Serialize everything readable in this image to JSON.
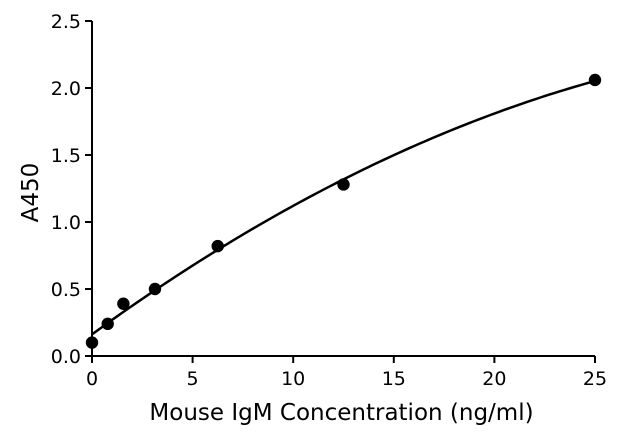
{
  "chart_data": {
    "type": "scatter",
    "title": "",
    "xlabel": "Mouse IgM Concentration (ng/ml)",
    "ylabel": "A450",
    "xlim": [
      0,
      25
    ],
    "ylim": [
      0,
      2.5
    ],
    "x_ticks": [
      "0",
      "5",
      "10",
      "15",
      "20",
      "25"
    ],
    "y_ticks": [
      "0.0",
      "0.5",
      "1.0",
      "1.5",
      "2.0",
      "2.5"
    ],
    "grid": false,
    "legend": "none",
    "series": [
      {
        "points": [
          {
            "x": 0,
            "y": 0.1
          },
          {
            "x": 0.78,
            "y": 0.24
          },
          {
            "x": 1.56,
            "y": 0.39
          },
          {
            "x": 3.13,
            "y": 0.5
          },
          {
            "x": 6.25,
            "y": 0.82
          },
          {
            "x": 12.5,
            "y": 1.28
          },
          {
            "x": 25,
            "y": 2.06
          }
        ],
        "fit_curve": true
      }
    ],
    "colors": {
      "points": "#000000",
      "curve": "#000000",
      "axes": "#000000"
    }
  }
}
